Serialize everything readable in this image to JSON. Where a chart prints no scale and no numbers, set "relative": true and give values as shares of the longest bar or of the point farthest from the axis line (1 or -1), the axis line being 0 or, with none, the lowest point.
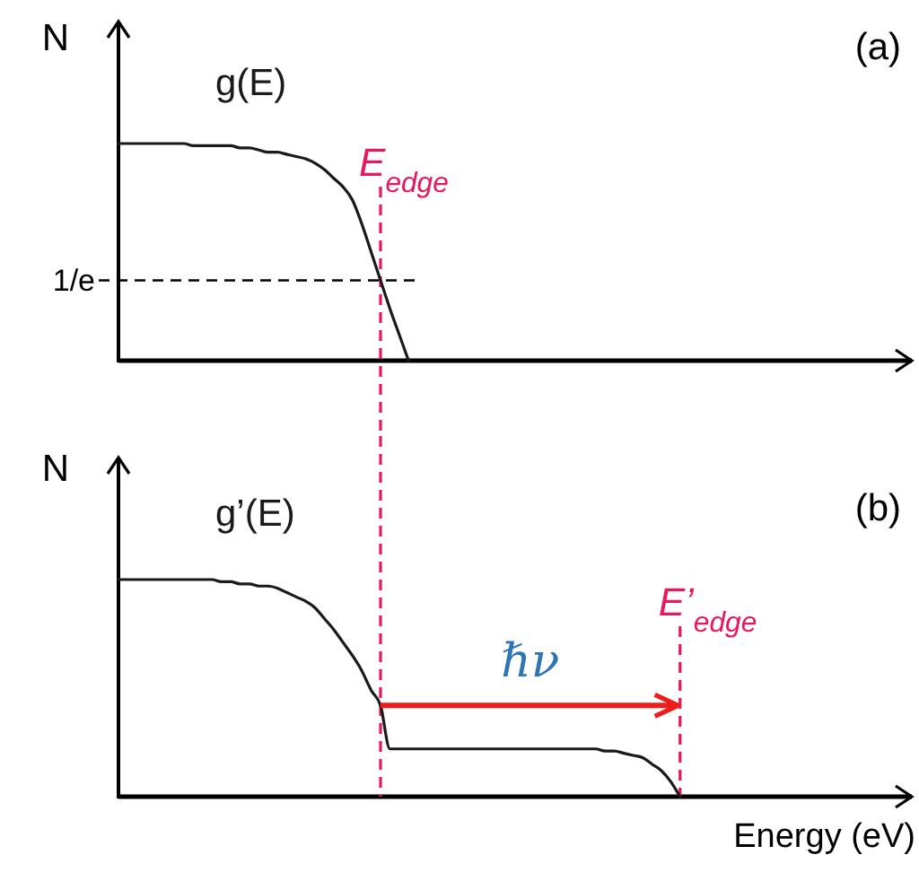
{
  "chart_data": [
    {
      "type": "line",
      "relative": true,
      "ylabel": "N",
      "categories": [
        null,
        null,
        null,
        null,
        null,
        null,
        null,
        null,
        null,
        null,
        null,
        null,
        null,
        null,
        null,
        null,
        null,
        null,
        null,
        null,
        null,
        null,
        null,
        null,
        null,
        null,
        null,
        null,
        null,
        null,
        null,
        null,
        null,
        null,
        null,
        null,
        null,
        null,
        null,
        null,
        null,
        null,
        null,
        null,
        null,
        null,
        null,
        null,
        null,
        null,
        null,
        null,
        null,
        null,
        null,
        null,
        null,
        null,
        null,
        null,
        null,
        null,
        null,
        null,
        null,
        null,
        null,
        null,
        null,
        null,
        null,
        null,
        null,
        null,
        null,
        null,
        null,
        null,
        null,
        null,
        null,
        null,
        null,
        null,
        null
      ],
      "series": [
        {
          "name": "g(E)",
          "color": "#1a1a1a",
          "values": [
            1,
            1,
            1,
            1,
            1,
            1,
            1,
            1,
            0.99,
            0.99,
            0.99,
            0.99,
            0.99,
            0.98,
            0.98,
            0.97,
            0.96,
            0.96,
            0.95,
            0.94,
            0.93,
            0.91,
            0.88,
            0.84,
            0.8,
            0.74,
            0.63,
            0.5,
            0.37,
            0.24,
            0.12,
            0,
            null,
            null,
            null,
            null,
            null,
            null,
            null,
            null,
            null,
            null,
            null,
            null,
            null,
            null,
            null,
            null,
            null,
            null,
            null,
            null,
            null,
            null,
            null,
            null,
            null,
            null,
            null,
            null,
            null,
            null,
            null,
            null,
            null,
            null,
            null,
            null,
            null,
            null,
            null,
            null,
            null,
            null,
            null,
            null,
            null,
            null,
            null,
            null,
            null,
            null,
            null,
            null,
            null
          ]
        }
      ],
      "ref_lines": [
        {
          "axis": "y",
          "value": 0.37,
          "label": "1/e",
          "color": "#000000",
          "line_style": "dashed"
        }
      ],
      "annotations": [
        "(a)",
        "E$_{edge}$"
      ]
    },
    {
      "type": "line",
      "relative": true,
      "ylabel": "N",
      "xlabel": "Energy (eV)",
      "categories": [
        null,
        null,
        null,
        null,
        null,
        null,
        null,
        null,
        null,
        null,
        null,
        null,
        null,
        null,
        null,
        null,
        null,
        null,
        null,
        null,
        null,
        null,
        null,
        null,
        null,
        null,
        null,
        null,
        null,
        null,
        null,
        null,
        null,
        null,
        null,
        null,
        null,
        null,
        null,
        null,
        null,
        null,
        null,
        null,
        null,
        null,
        null,
        null,
        null,
        null,
        null,
        null,
        null,
        null,
        null,
        null,
        null,
        null,
        null,
        null,
        null,
        null,
        null,
        null,
        null,
        null,
        null,
        null,
        null,
        null,
        null,
        null,
        null,
        null,
        null,
        null,
        null,
        null,
        null,
        null,
        null,
        null,
        null,
        null,
        null
      ],
      "series": [
        {
          "name": "g’(E)",
          "color": "#1a1a1a",
          "values": [
            1,
            1,
            1,
            1,
            1,
            1,
            1,
            1,
            1,
            1,
            1,
            0.99,
            0.99,
            0.98,
            0.98,
            0.97,
            0.97,
            0.96,
            0.94,
            0.92,
            0.9,
            0.87,
            0.82,
            0.77,
            0.71,
            0.65,
            0.58,
            0.49,
            0.42,
            0.22,
            0.22,
            0.22,
            0.22,
            0.22,
            0.22,
            0.22,
            0.22,
            0.22,
            0.22,
            0.22,
            0.22,
            0.22,
            0.22,
            0.22,
            0.22,
            0.22,
            0.22,
            0.22,
            0.22,
            0.22,
            0.22,
            0.22,
            0.21,
            0.21,
            0.2,
            0.19,
            0.18,
            0.15,
            0.12,
            0.07,
            0,
            null,
            null,
            null,
            null,
            null,
            null,
            null,
            null,
            null,
            null,
            null,
            null,
            null,
            null,
            null,
            null,
            null,
            null,
            null,
            null,
            null,
            null,
            null,
            null
          ]
        }
      ],
      "annotations": [
        "(b)",
        "E’$_{edge}$",
        "ℏν"
      ]
    }
  ]
}
